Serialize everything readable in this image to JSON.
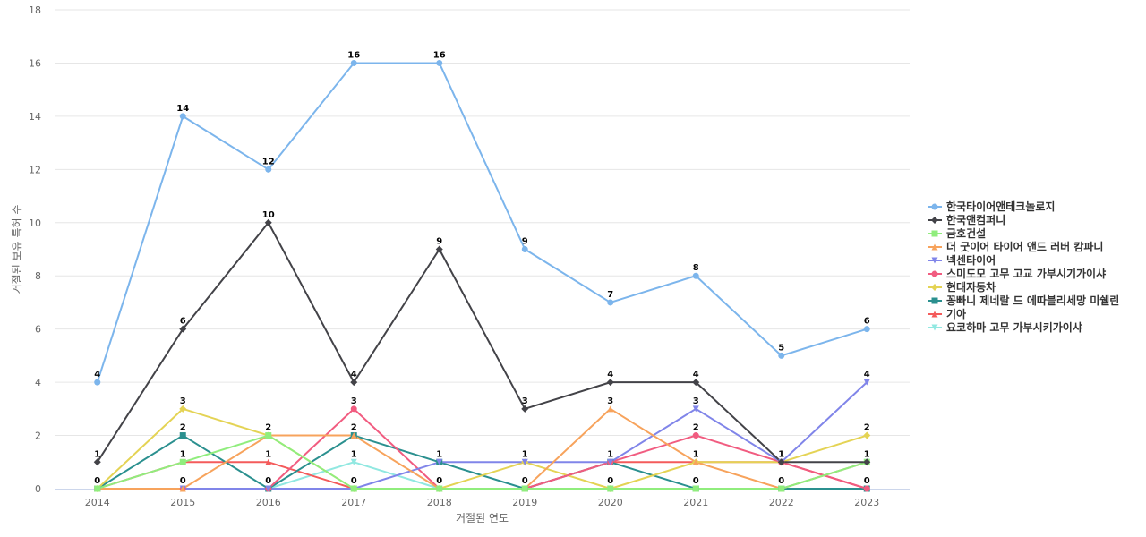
{
  "chart_data": {
    "type": "line",
    "xlabel": "거절된 연도",
    "ylabel": "거절된 보유 특허 수",
    "ylim": [
      0,
      18
    ],
    "yticks": [
      0,
      2,
      4,
      6,
      8,
      10,
      12,
      14,
      16,
      18
    ],
    "grid": true,
    "legend_position": "right",
    "categories": [
      "2014",
      "2015",
      "2016",
      "2017",
      "2018",
      "2019",
      "2020",
      "2021",
      "2022",
      "2023"
    ],
    "series": [
      {
        "name": "한국타이어앤테크놀로지",
        "color": "#7cb5ec",
        "marker": "circle",
        "values": [
          4,
          14,
          12,
          16,
          16,
          9,
          7,
          8,
          5,
          6
        ],
        "labels": [
          4,
          14,
          12,
          16,
          16,
          9,
          7,
          8,
          5,
          6
        ]
      },
      {
        "name": "한국앤컴퍼니",
        "color": "#434348",
        "marker": "diamond",
        "values": [
          1,
          6,
          10,
          4,
          9,
          3,
          4,
          4,
          1,
          1
        ],
        "labels": [
          1,
          6,
          10,
          4,
          9,
          3,
          4,
          4,
          null,
          null
        ]
      },
      {
        "name": "금호건설",
        "color": "#90ed7d",
        "marker": "square",
        "values": [
          0,
          1,
          2,
          0,
          0,
          0,
          0,
          0,
          0,
          1
        ],
        "labels": [
          null,
          null,
          null,
          null,
          null,
          null,
          null,
          null,
          null,
          null
        ]
      },
      {
        "name": "더 굿이어 타이어 앤드 러버 캄파니",
        "color": "#f7a35c",
        "marker": "triangle",
        "values": [
          0,
          0,
          2,
          2,
          0,
          0,
          3,
          1,
          0,
          1
        ],
        "labels": [
          null,
          null,
          null,
          null,
          null,
          null,
          3,
          null,
          null,
          null
        ]
      },
      {
        "name": "넥센타이어",
        "color": "#8085e9",
        "marker": "triangle-down",
        "values": [
          0,
          0,
          0,
          0,
          1,
          1,
          1,
          3,
          1,
          4
        ],
        "labels": [
          null,
          null,
          null,
          null,
          null,
          null,
          null,
          3,
          null,
          4
        ]
      },
      {
        "name": "스미도모 고무 고교 가부시기가이샤",
        "color": "#f15c80",
        "marker": "circle",
        "values": [
          0,
          0,
          0,
          3,
          0,
          0,
          1,
          2,
          1,
          0
        ],
        "labels": [
          null,
          null,
          null,
          3,
          null,
          null,
          null,
          2,
          null,
          null
        ]
      },
      {
        "name": "현대자동차",
        "color": "#e4d354",
        "marker": "diamond",
        "values": [
          0,
          3,
          2,
          0,
          0,
          1,
          0,
          1,
          1,
          2
        ],
        "labels": [
          null,
          3,
          null,
          null,
          null,
          null,
          null,
          null,
          null,
          2
        ]
      },
      {
        "name": "꽁빠니 제네랄 드 에따블리세망 미쉘린",
        "color": "#2b908f",
        "marker": "square",
        "values": [
          0,
          2,
          0,
          2,
          1,
          0,
          1,
          0,
          0,
          0
        ],
        "labels": [
          null,
          2,
          null,
          2,
          null,
          null,
          null,
          null,
          null,
          null
        ]
      },
      {
        "name": "기아",
        "color": "#f45b5b",
        "marker": "triangle",
        "values": [
          0,
          1,
          1,
          0,
          0,
          0,
          1,
          1,
          1,
          0
        ],
        "labels": [
          null,
          null,
          null,
          null,
          null,
          null,
          null,
          null,
          null,
          null
        ]
      },
      {
        "name": "요코하마 고무 가부시키가이샤",
        "color": "#91e8e1",
        "marker": "triangle-down",
        "values": [
          0,
          0,
          0,
          1,
          0,
          0,
          0,
          0,
          0,
          1
        ],
        "labels": [
          null,
          null,
          null,
          null,
          null,
          null,
          null,
          null,
          null,
          null
        ]
      }
    ],
    "extra_labels": [
      {
        "x": "2014",
        "y": 0,
        "text": "0"
      },
      {
        "x": "2015",
        "y": 1,
        "text": "1"
      },
      {
        "x": "2015",
        "y": 0,
        "text": "0"
      },
      {
        "x": "2016",
        "y": 2,
        "text": "2"
      },
      {
        "x": "2016",
        "y": 1,
        "text": "1"
      },
      {
        "x": "2016",
        "y": 0,
        "text": "0"
      },
      {
        "x": "2017",
        "y": 1,
        "text": "1"
      },
      {
        "x": "2017",
        "y": 0,
        "text": "0"
      },
      {
        "x": "2018",
        "y": 1,
        "text": "1"
      },
      {
        "x": "2018",
        "y": 0,
        "text": "0"
      },
      {
        "x": "2019",
        "y": 1,
        "text": "1"
      },
      {
        "x": "2019",
        "y": 0,
        "text": "0"
      },
      {
        "x": "2020",
        "y": 1,
        "text": "1"
      },
      {
        "x": "2020",
        "y": 0,
        "text": "0"
      },
      {
        "x": "2021",
        "y": 1,
        "text": "1"
      },
      {
        "x": "2021",
        "y": 0,
        "text": "0"
      },
      {
        "x": "2022",
        "y": 1,
        "text": "1"
      },
      {
        "x": "2022",
        "y": 0,
        "text": "0"
      },
      {
        "x": "2023",
        "y": 1,
        "text": "1"
      },
      {
        "x": "2023",
        "y": 0,
        "text": "0"
      }
    ]
  }
}
